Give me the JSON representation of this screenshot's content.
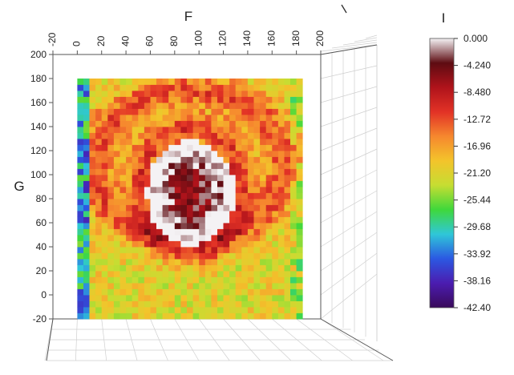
{
  "chart_data": {
    "type": "heatmap",
    "title": "",
    "xlabel": "F",
    "ylabel": "G",
    "zlabel": "I",
    "x_ticks": [
      "-20",
      "0",
      "20",
      "40",
      "60",
      "80",
      "100",
      "120",
      "140",
      "160",
      "180",
      "200"
    ],
    "y_ticks": [
      "200",
      "180",
      "160",
      "140",
      "120",
      "100",
      "80",
      "60",
      "40",
      "20",
      "0",
      "-20"
    ],
    "xlim": [
      -20,
      200
    ],
    "ylim": [
      -20,
      200
    ],
    "data_extent": {
      "x": [
        0,
        185
      ],
      "y": [
        -20,
        180
      ]
    },
    "colorbar": {
      "title": "I",
      "ticks": [
        "0.000",
        "-4.240",
        "-8.480",
        "-12.72",
        "-16.96",
        "-21.20",
        "-25.44",
        "-29.68",
        "-33.92",
        "-38.16",
        "-42.40"
      ],
      "range": [
        -42.4,
        0
      ],
      "colors": [
        "#f4f2f4",
        "#5e0c12",
        "#b0131b",
        "#e23226",
        "#f6882e",
        "#f3c42b",
        "#c6dd32",
        "#3fd83b",
        "#2fc7d8",
        "#2b58e2",
        "#4b1cb0",
        "#3a0a5a"
      ]
    },
    "features": [
      {
        "name": "core",
        "center": [
          93,
          85
        ],
        "radius": [
          36,
          44
        ],
        "value": -2.5
      },
      {
        "name": "ring",
        "center": [
          92,
          108
        ],
        "radius": [
          78,
          62
        ],
        "value": -12.5
      },
      {
        "name": "background",
        "value": -21.0
      },
      {
        "name": "left-edge",
        "x": [
          0,
          8
        ],
        "value": -34.5
      }
    ]
  },
  "grid": true
}
